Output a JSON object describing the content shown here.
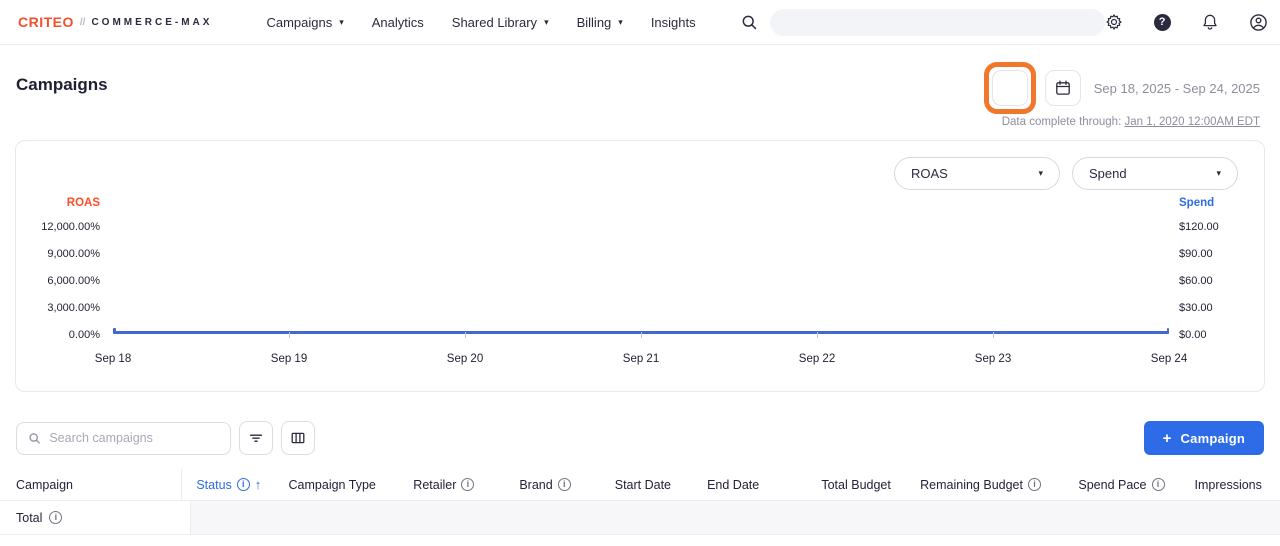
{
  "nav": {
    "logo": {
      "primary": "CRITEO",
      "separator": "//",
      "secondary": "COMMERCE-MAX"
    },
    "items": [
      {
        "label": "Campaigns",
        "dropdown": true
      },
      {
        "label": "Analytics",
        "dropdown": false
      },
      {
        "label": "Shared Library",
        "dropdown": true
      },
      {
        "label": "Billing",
        "dropdown": true
      },
      {
        "label": "Insights",
        "dropdown": false
      }
    ],
    "icons": [
      {
        "name": "settings-icon"
      },
      {
        "name": "help-icon",
        "glyph": "?"
      },
      {
        "name": "notifications-icon"
      },
      {
        "name": "account-icon"
      }
    ]
  },
  "page": {
    "title": "Campaigns",
    "date_range": "Sep 18, 2025 - Sep 24, 2025",
    "data_complete_label": "Data complete through:",
    "data_complete_value": "Jan 1, 2020 12:00AM EDT"
  },
  "chart": {
    "controls": {
      "primary_metric": "ROAS",
      "secondary_metric": "Spend"
    }
  },
  "chart_data": {
    "type": "line",
    "x": [
      "Sep 18",
      "Sep 19",
      "Sep 20",
      "Sep 21",
      "Sep 22",
      "Sep 23",
      "Sep 24"
    ],
    "series": [
      {
        "name": "ROAS",
        "axis": "left",
        "color": "#ff4f28",
        "values": [
          0,
          0,
          0,
          0,
          0,
          0,
          0
        ]
      },
      {
        "name": "Spend",
        "axis": "right",
        "color": "#4468cf",
        "values": [
          0,
          0,
          0,
          0,
          0,
          0,
          0
        ]
      }
    ],
    "left_axis": {
      "label": "ROAS",
      "color": "#ff4f28",
      "tick_labels": [
        "12,000.00%",
        "9,000.00%",
        "6,000.00%",
        "3,000.00%",
        "0.00%"
      ],
      "range": [
        0,
        12000
      ],
      "unit": "percent"
    },
    "right_axis": {
      "label": "Spend",
      "color": "#2e6be6",
      "tick_labels": [
        "$120.00",
        "$90.00",
        "$60.00",
        "$30.00",
        "$0.00"
      ],
      "range": [
        0,
        120
      ],
      "unit": "USD"
    },
    "grid": false,
    "legend_position": "none"
  },
  "toolbar": {
    "search_placeholder": "Search campaigns",
    "create_campaign_plus": "+",
    "create_campaign_label": "Campaign"
  },
  "table": {
    "columns": [
      {
        "label": "Campaign"
      },
      {
        "label": "Status",
        "info": true,
        "sort": "asc",
        "active": true
      },
      {
        "label": "Campaign Type"
      },
      {
        "label": "Retailer",
        "info": true
      },
      {
        "label": "Brand",
        "info": true
      },
      {
        "label": "Start Date"
      },
      {
        "label": "End Date"
      },
      {
        "label": "Total Budget"
      },
      {
        "label": "Remaining Budget",
        "info": true
      },
      {
        "label": "Spend Pace",
        "info": true
      },
      {
        "label": "Impressions",
        "clipped": true
      }
    ],
    "total_row": {
      "label": "Total",
      "info": true
    }
  },
  "colors": {
    "brand_orange": "#f4502c",
    "highlight_orange": "#f0772c",
    "accent_blue": "#2e6be6",
    "chart_line_blue": "#4468cf"
  }
}
